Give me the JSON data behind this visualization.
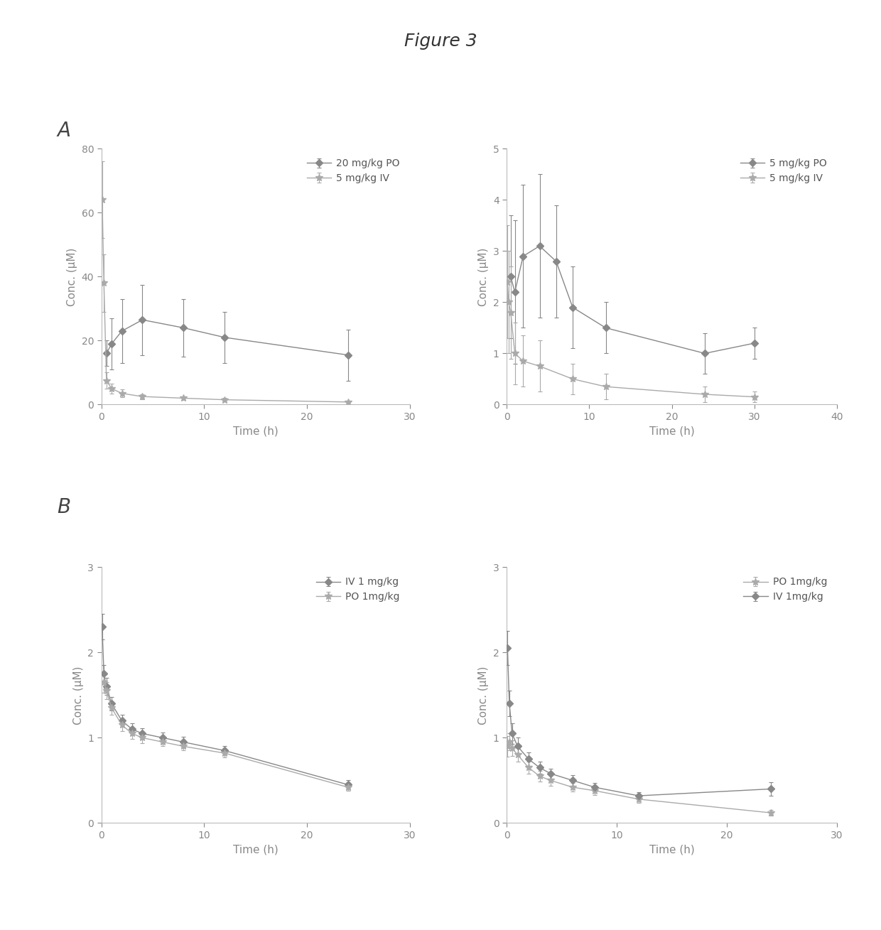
{
  "figure_title": "Figure 3",
  "panel_A_label": "A",
  "panel_B_label": "B",
  "ax1": {
    "xlabel": "Time (h)",
    "ylabel": "Conc. (μM)",
    "xlim": [
      0,
      30
    ],
    "ylim": [
      0,
      80
    ],
    "yticks": [
      0,
      20,
      40,
      60,
      80
    ],
    "xticks": [
      0,
      10,
      20,
      30
    ],
    "series": [
      {
        "label": "20 mg/kg PO",
        "x": [
          0.5,
          1,
          2,
          4,
          8,
          12,
          24
        ],
        "y": [
          16.0,
          19.0,
          23.0,
          26.5,
          24.0,
          21.0,
          15.5
        ],
        "yerr": [
          4.0,
          8.0,
          10.0,
          11.0,
          9.0,
          8.0,
          8.0
        ],
        "color": "#888888",
        "marker": "D",
        "markersize": 5,
        "linestyle": "-",
        "linewidth": 1.0
      },
      {
        "label": "5 mg/kg IV",
        "x": [
          0.083,
          0.25,
          0.5,
          1,
          2,
          4,
          8,
          12,
          24
        ],
        "y": [
          64.0,
          38.0,
          7.5,
          5.0,
          3.5,
          2.5,
          2.0,
          1.5,
          0.8
        ],
        "yerr": [
          12.0,
          9.0,
          2.5,
          1.5,
          1.2,
          0.8,
          0.6,
          0.5,
          0.3
        ],
        "color": "#aaaaaa",
        "marker": "*",
        "markersize": 7,
        "linestyle": "-",
        "linewidth": 1.0
      }
    ]
  },
  "ax2": {
    "xlabel": "Time (h)",
    "ylabel": "Conc. (μM)",
    "xlim": [
      0,
      40
    ],
    "ylim": [
      0,
      5
    ],
    "yticks": [
      0,
      1,
      2,
      3,
      4,
      5
    ],
    "xticks": [
      0,
      10,
      20,
      30,
      40
    ],
    "series": [
      {
        "label": "5 mg/kg PO",
        "x": [
          0.5,
          1,
          2,
          4,
          6,
          8,
          12,
          24,
          30
        ],
        "y": [
          2.5,
          2.2,
          2.9,
          3.1,
          2.8,
          1.9,
          1.5,
          1.0,
          1.2
        ],
        "yerr": [
          1.2,
          1.4,
          1.4,
          1.4,
          1.1,
          0.8,
          0.5,
          0.4,
          0.3
        ],
        "color": "#888888",
        "marker": "D",
        "markersize": 5,
        "linestyle": "-",
        "linewidth": 1.0
      },
      {
        "label": "5 mg/kg IV",
        "x": [
          0.083,
          0.25,
          0.5,
          1,
          2,
          4,
          8,
          12,
          24,
          30
        ],
        "y": [
          2.4,
          2.0,
          1.8,
          1.0,
          0.85,
          0.75,
          0.5,
          0.35,
          0.2,
          0.15
        ],
        "yerr": [
          1.1,
          1.0,
          0.9,
          0.6,
          0.5,
          0.5,
          0.3,
          0.25,
          0.15,
          0.1
        ],
        "color": "#aaaaaa",
        "marker": "*",
        "markersize": 7,
        "linestyle": "-",
        "linewidth": 1.0
      }
    ]
  },
  "ax3": {
    "xlabel": "Time (h)",
    "ylabel": "Conc. (μM)",
    "xlim": [
      0,
      30
    ],
    "ylim": [
      0,
      3
    ],
    "yticks": [
      0,
      1,
      2,
      3
    ],
    "xticks": [
      0,
      10,
      20,
      30
    ],
    "series": [
      {
        "label": "IV 1 mg/kg",
        "x": [
          0.083,
          0.25,
          0.5,
          1,
          2,
          3,
          4,
          6,
          8,
          12,
          24
        ],
        "y": [
          2.3,
          1.75,
          1.6,
          1.4,
          1.2,
          1.1,
          1.05,
          1.0,
          0.95,
          0.85,
          0.45
        ],
        "yerr": [
          0.15,
          0.1,
          0.1,
          0.08,
          0.07,
          0.07,
          0.06,
          0.06,
          0.06,
          0.05,
          0.05
        ],
        "color": "#888888",
        "marker": "D",
        "markersize": 5,
        "linestyle": "-",
        "linewidth": 1.0
      },
      {
        "label": "PO 1mg/kg",
        "x": [
          0.25,
          0.5,
          1,
          2,
          3,
          4,
          6,
          8,
          12,
          24
        ],
        "y": [
          1.65,
          1.55,
          1.35,
          1.15,
          1.05,
          1.0,
          0.95,
          0.9,
          0.82,
          0.42
        ],
        "yerr": [
          0.12,
          0.1,
          0.08,
          0.07,
          0.06,
          0.06,
          0.05,
          0.05,
          0.05,
          0.04
        ],
        "color": "#aaaaaa",
        "marker": "*",
        "markersize": 7,
        "linestyle": "-",
        "linewidth": 1.0
      }
    ]
  },
  "ax4": {
    "xlabel": "Time (h)",
    "ylabel": "Conc. (μM)",
    "xlim": [
      0,
      30
    ],
    "ylim": [
      0,
      3
    ],
    "yticks": [
      0,
      1,
      2,
      3
    ],
    "xticks": [
      0,
      10,
      20,
      30
    ],
    "series": [
      {
        "label": "PO 1mg/kg",
        "x": [
          0.083,
          0.25,
          0.5,
          1,
          2,
          3,
          4,
          6,
          8,
          12,
          24
        ],
        "y": [
          0.9,
          0.95,
          0.88,
          0.8,
          0.65,
          0.55,
          0.5,
          0.42,
          0.38,
          0.28,
          0.12
        ],
        "yerr": [
          0.12,
          0.1,
          0.09,
          0.08,
          0.07,
          0.06,
          0.06,
          0.05,
          0.05,
          0.04,
          0.03
        ],
        "color": "#aaaaaa",
        "marker": "*",
        "markersize": 7,
        "linestyle": "-",
        "linewidth": 1.0
      },
      {
        "label": "IV 1mg/kg",
        "x": [
          0.083,
          0.25,
          0.5,
          1,
          2,
          3,
          4,
          6,
          8,
          12,
          24
        ],
        "y": [
          2.05,
          1.4,
          1.05,
          0.9,
          0.75,
          0.65,
          0.58,
          0.5,
          0.42,
          0.32,
          0.4
        ],
        "yerr": [
          0.2,
          0.15,
          0.12,
          0.1,
          0.08,
          0.07,
          0.06,
          0.06,
          0.05,
          0.04,
          0.08
        ],
        "color": "#888888",
        "marker": "D",
        "markersize": 5,
        "linestyle": "-",
        "linewidth": 1.0
      }
    ]
  },
  "background_color": "#ffffff",
  "spine_color": "#bbbbbb",
  "tick_color": "#888888",
  "label_color": "#888888",
  "legend_text_color": "#555555",
  "font_size": 11,
  "tick_fontsize": 10,
  "legend_fontsize": 10,
  "label_fontsize": 11,
  "fig_title_fontsize": 18,
  "panel_label_fontsize": 20
}
